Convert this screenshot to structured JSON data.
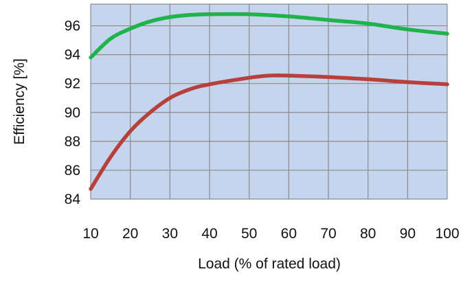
{
  "chart_data": {
    "type": "line",
    "xlabel": "Load (% of rated load)",
    "ylabel": "Efficiency [%]",
    "xlim": [
      10,
      100
    ],
    "ylim": [
      84,
      97.5
    ],
    "xticks": [
      10,
      20,
      30,
      40,
      50,
      60,
      70,
      80,
      90,
      100
    ],
    "yticks": [
      84,
      86,
      88,
      90,
      92,
      94,
      96
    ],
    "xtick_labels": [
      "10",
      "20",
      "30",
      "40",
      "50",
      "60",
      "70",
      "80",
      "90",
      "100"
    ],
    "ytick_labels": [
      "84",
      "86",
      "88",
      "90",
      "92",
      "94",
      "96"
    ],
    "grid": true,
    "legend": "none",
    "colors": {
      "plot_background": "#c5d5ee",
      "grid": "#8a8a8a",
      "upper_series": "#1fb44b",
      "lower_series": "#b7403c"
    },
    "series": [
      {
        "color": "#1fb44b",
        "x": [
          10,
          15,
          20,
          25,
          30,
          35,
          40,
          50,
          60,
          70,
          80,
          90,
          100
        ],
        "y": [
          93.8,
          95.1,
          95.8,
          96.3,
          96.6,
          96.75,
          96.8,
          96.8,
          96.65,
          96.4,
          96.15,
          95.75,
          95.45
        ]
      },
      {
        "color": "#b7403c",
        "x": [
          10,
          15,
          20,
          25,
          30,
          35,
          40,
          50,
          55,
          60,
          70,
          80,
          90,
          100
        ],
        "y": [
          84.7,
          86.9,
          88.7,
          90.0,
          91.0,
          91.6,
          91.95,
          92.4,
          92.55,
          92.55,
          92.45,
          92.3,
          92.1,
          91.95
        ]
      }
    ]
  }
}
